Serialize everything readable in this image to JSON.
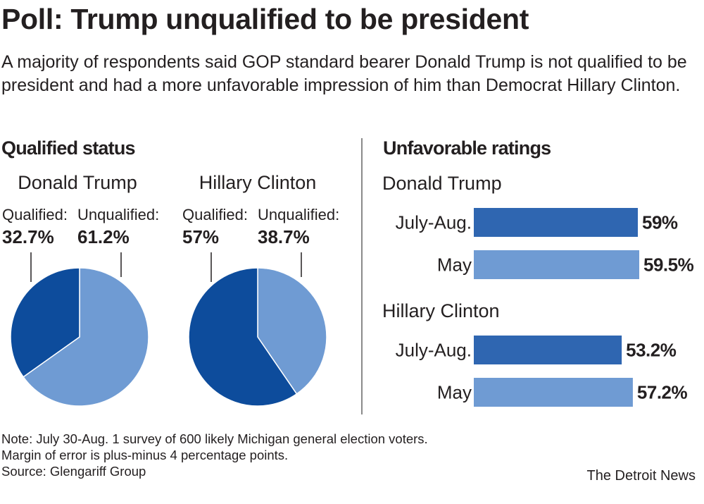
{
  "title": "Poll: Trump unqualified to be president",
  "subtitle": "A majority of respondents said GOP standard bearer Donald Trump is not qualified to be president and had a more unfavorable impression of him than Democrat Hillary Clinton.",
  "colors": {
    "dark_blue": "#0d4c9c",
    "mid_blue": "#2f66b1",
    "light_blue": "#6f9bd3",
    "divider": "#8a8a8a"
  },
  "chart_data": [
    {
      "type": "pie",
      "title": "Qualified status",
      "pies": [
        {
          "name": "Donald Trump",
          "slices": [
            {
              "label": "Qualified:",
              "value": 32.7,
              "value_label": "32.7%",
              "color": "#0d4c9c"
            },
            {
              "label": "Unqualified:",
              "value": 61.2,
              "value_label": "61.2%",
              "color": "#6f9bd3"
            }
          ]
        },
        {
          "name": "Hillary Clinton",
          "slices": [
            {
              "label": "Qualified:",
              "value": 57,
              "value_label": "57%",
              "color": "#0d4c9c"
            },
            {
              "label": "Unqualified:",
              "value": 38.7,
              "value_label": "38.7%",
              "color": "#6f9bd3"
            }
          ]
        }
      ]
    },
    {
      "type": "bar",
      "orientation": "horizontal",
      "title": "Unfavorable ratings",
      "groups": [
        {
          "name": "Donald Trump",
          "bars": [
            {
              "label": "July-Aug.",
              "value": 59,
              "value_label": "59%",
              "color": "#2f66b1"
            },
            {
              "label": "May",
              "value": 59.5,
              "value_label": "59.5%",
              "color": "#6f9bd3"
            }
          ]
        },
        {
          "name": "Hillary Clinton",
          "bars": [
            {
              "label": "July-Aug.",
              "value": 53.2,
              "value_label": "53.2%",
              "color": "#2f66b1"
            },
            {
              "label": "May",
              "value": 57.2,
              "value_label": "57.2%",
              "color": "#6f9bd3"
            }
          ]
        }
      ]
    }
  ],
  "notes": [
    "Note: July 30-Aug. 1 survey of 600 likely Michigan general election voters.",
    "Margin of error is plus-minus 4 percentage points.",
    "Source: Glengariff Group"
  ],
  "credit": "The Detroit News"
}
